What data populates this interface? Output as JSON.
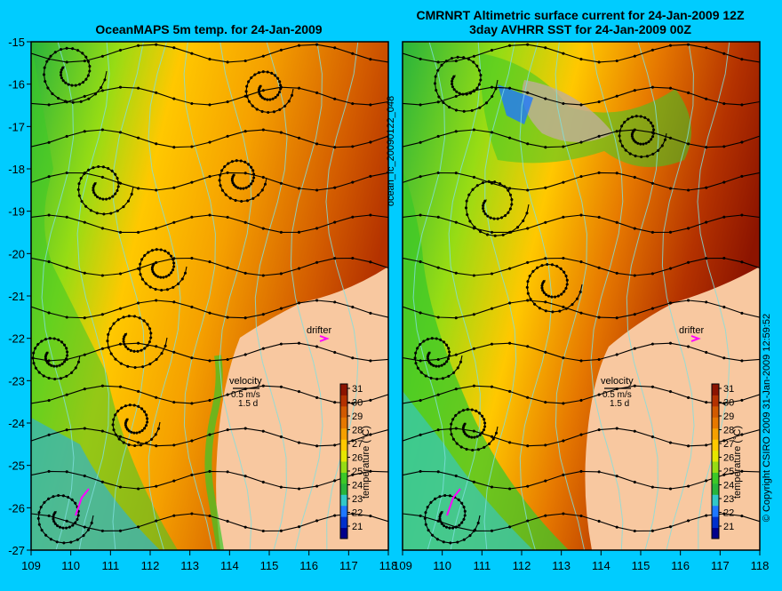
{
  "left_panel": {
    "title": "OceanMAPS 5m temp. for 24-Jan-2009",
    "vertical_label": "ocean_fc_20090122_048"
  },
  "right_panel": {
    "title_line1": "CMRNRT Altimetric surface current for 24-Jan-2009 12Z",
    "title_line2": "3day AVHRR SST for 24-Jan-2009 00Z"
  },
  "y_ticks": [
    "-15",
    "-16",
    "-17",
    "-18",
    "-19",
    "-20",
    "-21",
    "-22",
    "-23",
    "-24",
    "-25",
    "-26",
    "-27"
  ],
  "x_ticks": [
    "109",
    "110",
    "111",
    "112",
    "113",
    "114",
    "115",
    "116",
    "117",
    "118"
  ],
  "drifter_label": "drifter",
  "velocity_label": "velocity",
  "velocity_scale": "0.5 m/s",
  "velocity_time": "1.5 d",
  "colorbar": {
    "ticks": [
      "31",
      "30",
      "29",
      "28",
      "27",
      "26",
      "25",
      "24",
      "23",
      "22",
      "21"
    ],
    "label": "temperature (°C)",
    "colors": [
      "#00008b",
      "#0030cc",
      "#1e78ff",
      "#32c8c8",
      "#28b43c",
      "#3cc828",
      "#96dc14",
      "#e6e600",
      "#ffc800",
      "#f5a000",
      "#e67800",
      "#d25a00",
      "#b43200",
      "#8c1400"
    ]
  },
  "copyright": "© Copyright CSIRO 2009   31-Jan-2009 12:59:52",
  "colors": {
    "background": "#00ccff",
    "land": "#f8c8a0",
    "frame": "#000000",
    "drifter": "#ff00ff",
    "contour": "#7fe0e0"
  }
}
